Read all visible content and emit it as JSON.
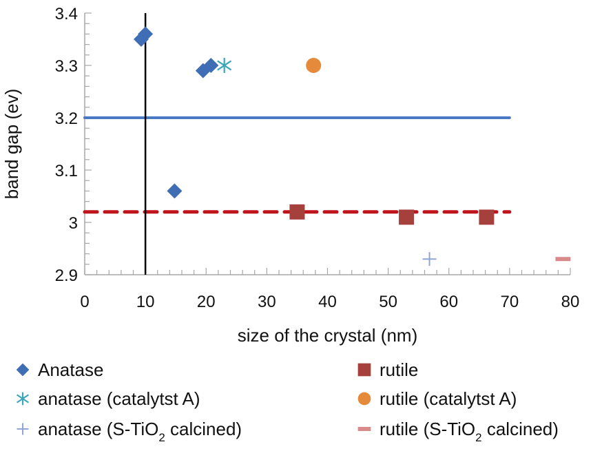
{
  "chart_data": {
    "type": "scatter",
    "title": "",
    "xlabel": "size of the crystal (nm)",
    "ylabel": "band gap (ev)",
    "xlim": [
      0,
      80
    ],
    "ylim": [
      2.9,
      3.4
    ],
    "x_ticks": [
      "0",
      "10",
      "20",
      "30",
      "40",
      "50",
      "60",
      "70",
      "80"
    ],
    "y_ticks": [
      "2.9",
      "3",
      "3.1",
      "3.2",
      "3.3",
      "3.4"
    ],
    "grid": false,
    "legend_position": "bottom",
    "series": [
      {
        "name": "Anatase",
        "marker": "diamond",
        "color": "#3f6eb5",
        "points": [
          [
            9.3,
            3.35
          ],
          [
            10,
            3.36
          ],
          [
            14.8,
            3.06
          ],
          [
            19.5,
            3.29
          ],
          [
            20.8,
            3.3
          ]
        ]
      },
      {
        "name": "anatase (catalytst A)",
        "marker": "asterisk",
        "color": "#3aa6b9",
        "points": [
          [
            23,
            3.3
          ]
        ]
      },
      {
        "name": "anatase (S-TiO2 calcined)",
        "name_parts": [
          "anatase (S-TiO",
          "2",
          " calcined)"
        ],
        "marker": "plus",
        "color": "#8fa6d6",
        "points": [
          [
            56.8,
            2.93
          ]
        ]
      },
      {
        "name": "rutile",
        "marker": "square",
        "color": "#a6403c",
        "points": [
          [
            35,
            3.02
          ],
          [
            53,
            3.01
          ],
          [
            66.2,
            3.01
          ]
        ]
      },
      {
        "name": "rutile (catalytst A)",
        "marker": "circle",
        "color": "#e58a3a",
        "points": [
          [
            37.7,
            3.3
          ]
        ]
      },
      {
        "name": "rutile (S-TiO2 calcined)",
        "name_parts": [
          "rutile (S-TiO",
          "2",
          " calcined)"
        ],
        "marker": "dash",
        "color": "#d98b8b",
        "points": [
          [
            78.8,
            2.93
          ]
        ]
      }
    ],
    "reference_lines": [
      {
        "orientation": "horizontal",
        "y": 3.2,
        "x_range": [
          0,
          70
        ],
        "style": "solid",
        "color": "#4a7ac4"
      },
      {
        "orientation": "horizontal",
        "y": 3.02,
        "x_range": [
          0,
          70
        ],
        "style": "dashed",
        "color": "#c0141c"
      },
      {
        "orientation": "vertical",
        "x": 10,
        "y_range": [
          2.9,
          3.4
        ],
        "style": "solid",
        "color": "#000000"
      }
    ]
  }
}
